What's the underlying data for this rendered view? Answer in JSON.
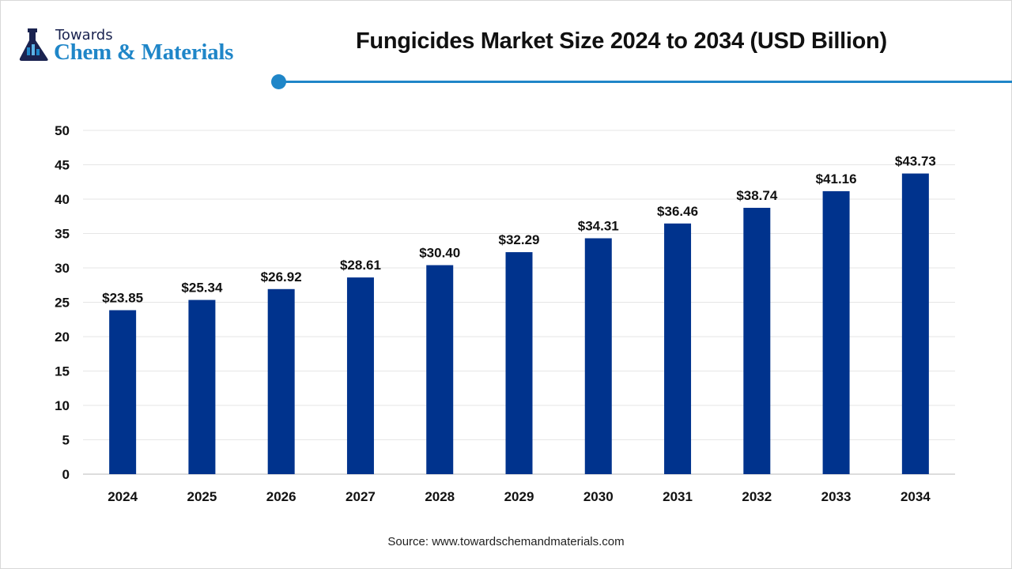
{
  "logo": {
    "line1": "Towards",
    "line2": "Chem & Materials"
  },
  "colors": {
    "bar": "#00338d",
    "accent": "#1f86c8"
  },
  "source": "Source: www.towardschemandmaterials.com",
  "chart_data": {
    "type": "bar",
    "title": "Fungicides Market Size 2024 to 2034 (USD Billion)",
    "categories": [
      "2024",
      "2025",
      "2026",
      "2027",
      "2028",
      "2029",
      "2030",
      "2031",
      "2032",
      "2033",
      "2034"
    ],
    "values": [
      23.85,
      25.34,
      26.92,
      28.61,
      30.4,
      32.29,
      34.31,
      36.46,
      38.74,
      41.16,
      43.73
    ],
    "data_labels": [
      "$23.85",
      "$25.34",
      "$26.92",
      "$28.61",
      "$30.40",
      "$32.29",
      "$34.31",
      "$36.46",
      "$38.74",
      "$41.16",
      "$43.73"
    ],
    "ylim": [
      0,
      50
    ],
    "yticks": [
      0,
      5,
      10,
      15,
      20,
      25,
      30,
      35,
      40,
      45,
      50
    ],
    "grid": true,
    "xlabel": "",
    "ylabel": ""
  }
}
